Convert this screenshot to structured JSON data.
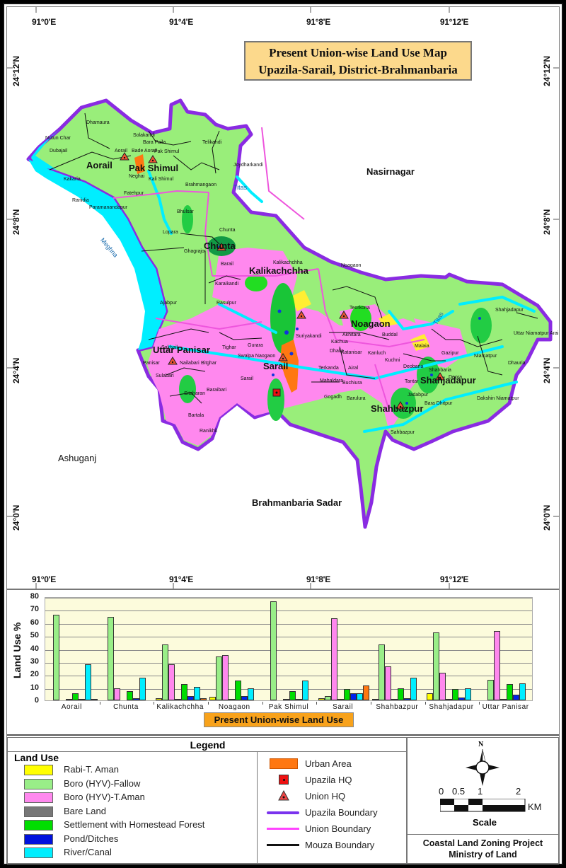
{
  "map": {
    "title_line1": "Present Union-wise Land Use  Map",
    "title_line2": "Upazila-Sarail, District-Brahmanbaria",
    "lon_ticks": [
      "91°0'E",
      "91°4'E",
      "91°8'E",
      "91°12'E"
    ],
    "lat_ticks": [
      "24°12'N",
      "24°8'N",
      "24°4'N",
      "24°0'N"
    ],
    "neighbors": [
      "Nasirnagar",
      "Ashuganj",
      "Brahmanbaria Sadar"
    ],
    "rivers": [
      "Meghna",
      "Titas",
      "Titas"
    ],
    "unions": [
      "Aorail",
      "Pak Shimul",
      "Chunta",
      "Kalikachchha",
      "Noagaon",
      "Uttar Panisar",
      "Sarail",
      "Shahjadapur",
      "Shahbazpur"
    ],
    "mouzas": [
      "Dhamaura",
      "Nutun Char",
      "Dubajail",
      "Kakaria",
      "Ranidia",
      "Solakandi",
      "Bara Paila",
      "Aorail",
      "Bade Aorail",
      "Pak Shimul",
      "Neghai",
      "Kali Shimul",
      "Brahmangaon",
      "Fatehpur",
      "Paramanandapur",
      "Bhulsar",
      "Telikandi",
      "Joydharkandi",
      "Lopara",
      "Chunta",
      "Ghagrajor",
      "Barail",
      "Karaikandi",
      "Rasulpur",
      "Ajabpur",
      "Kalikachchha",
      "Noagaon",
      "Teorkona",
      "Suriyakandi",
      "Akhitara",
      "Kachua",
      "Dhalia",
      "Katanisar",
      "Kanluch",
      "Buddal",
      "Sakhail",
      "Tighar",
      "Gurara",
      "Swalpa Naogaon",
      "Panisar",
      "Nailabari",
      "Bitghar",
      "Sulabari",
      "Sarail",
      "Sitaharan",
      "Baraibari",
      "Bartala",
      "Ranikhil",
      "Terkanda",
      "Airal",
      "Mahaldara",
      "Buchiura",
      "Gogadh",
      "Barulura",
      "Malaia",
      "Gazipur",
      "Kuchni",
      "Deobaria",
      "Shahbaria",
      "Deora",
      "Tantar",
      "Jadabpur",
      "Bara Dhitpur",
      "Sahbazpur",
      "Niamatpur",
      "Shahjadapur",
      "Uttar Niamatpur Arai",
      "Dhauria",
      "Dakshin Niamatpur"
    ]
  },
  "chart_data": {
    "type": "bar",
    "title": "Present Union-wise Land Use",
    "xlabel": "",
    "ylabel": "Land Use %",
    "ylim": [
      0,
      80
    ],
    "yticks": [
      0,
      10,
      20,
      30,
      40,
      50,
      60,
      70,
      80
    ],
    "grid": true,
    "categories": [
      "Aorail",
      "Chunta",
      "Kalikachchha",
      "Noagaon",
      "Pak Shimul",
      "Sarail",
      "Shahbazpur",
      "Shahjadapur",
      "Uttar Panisar"
    ],
    "series": [
      {
        "name": "Rabi-T. Aman",
        "color": "#ffff00",
        "values": [
          0,
          0,
          1.5,
          3,
          0,
          1.5,
          1,
          5.5,
          0
        ]
      },
      {
        "name": "Boro (HYV)-Fallow",
        "color": "#99ee88",
        "values": [
          66,
          64,
          43,
          34,
          76,
          3.5,
          43,
          52,
          16
        ]
      },
      {
        "name": "Boro (HYV)-T.Aman",
        "color": "#ff88ee",
        "values": [
          0,
          9.5,
          27.5,
          35,
          0,
          63,
          26,
          21.5,
          53.5
        ]
      },
      {
        "name": "Bare Land",
        "color": "#777777",
        "values": [
          0.5,
          0,
          0.5,
          0.5,
          0.5,
          0.5,
          0.5,
          0.5,
          0.5
        ]
      },
      {
        "name": "Settlement with Homestead Forest",
        "color": "#00dd00",
        "values": [
          5.5,
          7,
          12.5,
          15,
          7,
          8.5,
          9.5,
          8.5,
          12.5
        ]
      },
      {
        "name": "Pond/Ditches",
        "color": "#0022ee",
        "values": [
          1,
          1.5,
          3.5,
          3.5,
          0.5,
          5.5,
          1.5,
          2,
          4.5
        ]
      },
      {
        "name": "River/Canal",
        "color": "#00eeff",
        "values": [
          27.5,
          17.5,
          10.5,
          9.5,
          15.5,
          5.5,
          17.5,
          9.5,
          13
        ]
      },
      {
        "name": "Urban Area",
        "color": "#ff7711",
        "values": [
          0.5,
          0,
          1.5,
          0,
          0,
          11.5,
          0,
          0,
          0
        ]
      }
    ]
  },
  "legend": {
    "header": "Legend",
    "land_use_title": "Land Use",
    "land_use_items": [
      {
        "label": "Rabi-T. Aman",
        "color": "#ffff00"
      },
      {
        "label": "Boro (HYV)-Fallow",
        "color": "#99ee88"
      },
      {
        "label": "Boro (HYV)-T.Aman",
        "color": "#ff88ee"
      },
      {
        "label": "Bare Land",
        "color": "#777777"
      },
      {
        "label": "Settlement with Homestead Forest",
        "color": "#00dd00"
      },
      {
        "label": "Pond/Ditches",
        "color": "#0011dd"
      },
      {
        "label": "River/Canal",
        "color": "#00eeff"
      }
    ],
    "symbol_items": [
      {
        "label": "Urban Area",
        "symbol": "orange-rect"
      },
      {
        "label": "Upazila HQ",
        "symbol": "red-square-dot"
      },
      {
        "label": "Union HQ",
        "symbol": "red-triangle-dot"
      },
      {
        "label": "Upazila Boundary",
        "symbol": "purple-line"
      },
      {
        "label": "Union Boundary",
        "symbol": "pink-line"
      },
      {
        "label": "Mouza Boundary",
        "symbol": "black-line"
      }
    ],
    "north_label": "N",
    "scale_ticks": [
      "0",
      "0.5",
      "1",
      "2"
    ],
    "scale_unit": "KM",
    "scale_title": "Scale",
    "credit_line1": "Coastal Land Zoning Project",
    "credit_line2": "Ministry of Land"
  }
}
